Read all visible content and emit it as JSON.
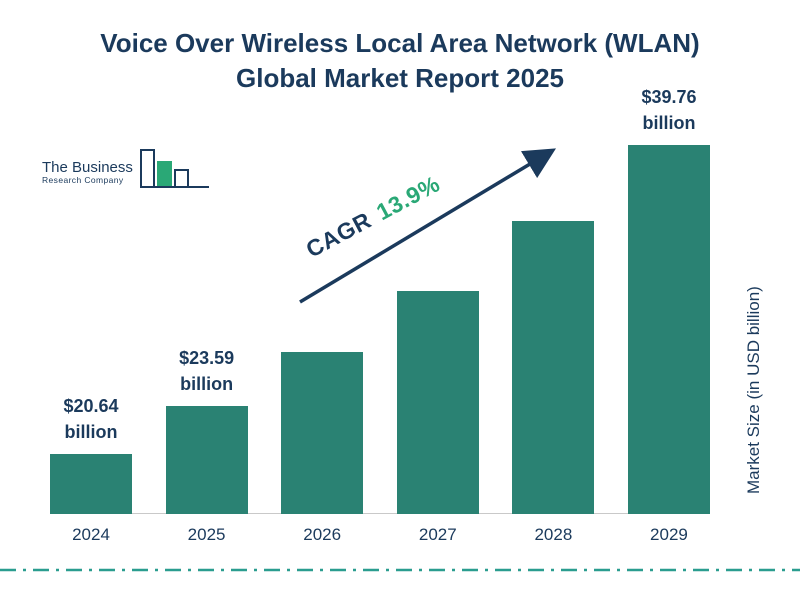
{
  "title": {
    "line1": "Voice Over Wireless Local Area Network (WLAN)",
    "line2": "Global Market Report 2025"
  },
  "logo": {
    "line1": "The Business",
    "line2": "Research Company"
  },
  "cagr": {
    "label": "CAGR",
    "value": "13.9%"
  },
  "y_axis_label": "Market Size (in USD billion)",
  "colors": {
    "bar": "#2a8273",
    "navy": "#1b3a5c",
    "green": "#2aa876",
    "dash": "#2a9d8f"
  },
  "chart_data": {
    "type": "bar",
    "title": "Voice Over Wireless Local Area Network (WLAN) Global Market Report 2025",
    "categories": [
      "2024",
      "2025",
      "2026",
      "2027",
      "2028",
      "2029"
    ],
    "values": [
      20.64,
      23.59,
      26.9,
      30.6,
      34.9,
      39.76
    ],
    "bar_labels": [
      [
        "$20.64",
        "billion"
      ],
      [
        "$23.59",
        "billion"
      ],
      null,
      null,
      null,
      [
        "$39.76",
        "billion"
      ]
    ],
    "xlabel": "",
    "ylabel": "Market Size (in USD billion)",
    "annotation": "CAGR 13.9%",
    "legend": "none",
    "grid": "off"
  }
}
